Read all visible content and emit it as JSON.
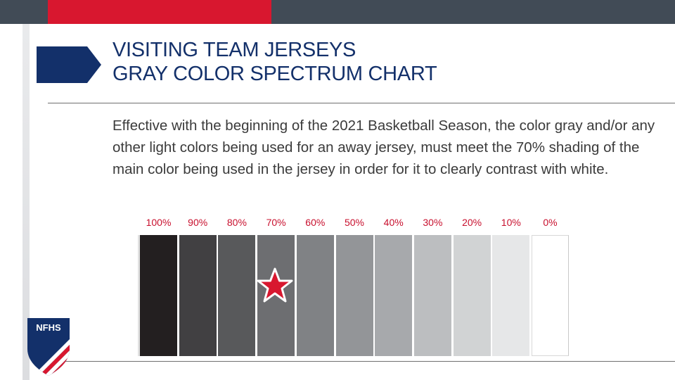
{
  "title": {
    "line1": "VISITING TEAM JERSEYS",
    "line2": "GRAY COLOR SPECTRUM CHART"
  },
  "body_text": "Effective with the beginning of the 2021 Basketball Season, the color gray and/or any other light colors being used for an away jersey, must meet the 70% shading of the main color being used in the jersey in order for it to clearly contrast with white.",
  "spectrum": {
    "marked_percent": "70%",
    "marker_icon": "star-icon",
    "swatches": [
      {
        "label": "100%",
        "color": "#231f20"
      },
      {
        "label": "90%",
        "color": "#414042"
      },
      {
        "label": "80%",
        "color": "#58595b"
      },
      {
        "label": "70%",
        "color": "#6d6e71"
      },
      {
        "label": "60%",
        "color": "#808285"
      },
      {
        "label": "50%",
        "color": "#939598"
      },
      {
        "label": "40%",
        "color": "#a7a9ac"
      },
      {
        "label": "30%",
        "color": "#bcbec0"
      },
      {
        "label": "20%",
        "color": "#d1d3d4"
      },
      {
        "label": "10%",
        "color": "#e6e7e8"
      },
      {
        "label": "0%",
        "color": "#ffffff"
      }
    ]
  },
  "logo": {
    "text": "NFHS"
  },
  "colors": {
    "navy": "#13306a",
    "red": "#d8172f",
    "dark_bar": "#414b56",
    "label_red": "#c8102e"
  }
}
